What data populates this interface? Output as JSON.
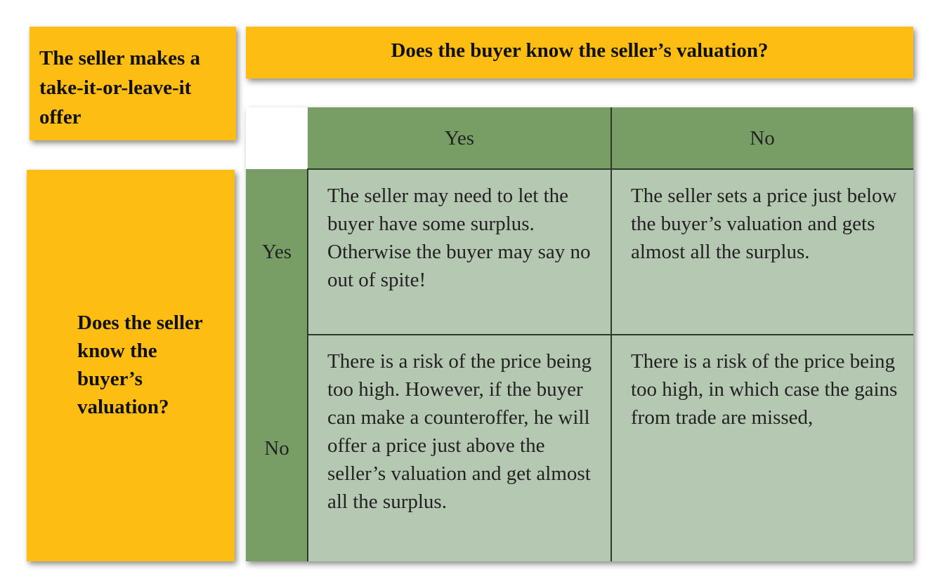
{
  "corner_title": "The seller makes a take-it-or-leave-it offer",
  "column_header": "Does the buyer know the seller’s valuation?",
  "row_header": "Does the seller know the buyer’s valuation?",
  "columns": [
    "Yes",
    "No"
  ],
  "rows": [
    {
      "label": "Yes",
      "cells": [
        "The seller may need to let the buyer have some surplus. Otherwise the buyer may say no out of spite!",
        "The seller sets a price just below the buyer’s valuation and gets almost all the surplus."
      ]
    },
    {
      "label": "No",
      "cells": [
        "There is a risk of the price being too high. However, if the buyer can make a counteroffer, he will offer a price just above the seller’s valuation and get almost all the surplus.",
        "There is a risk of the price being too high, in which case the gains from trade are missed,"
      ]
    }
  ],
  "colors": {
    "yellow": "#fdbd13",
    "green_dark": "#789e66",
    "green_light": "#b5c8b1"
  }
}
